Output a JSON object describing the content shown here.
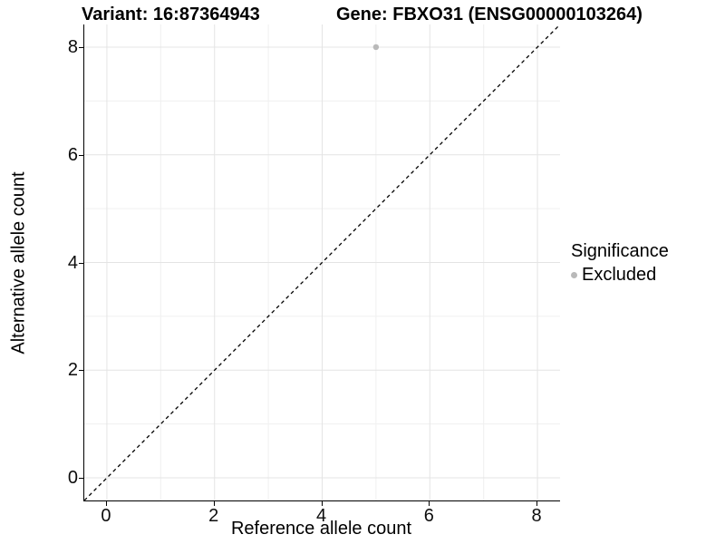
{
  "titles": {
    "variant": "Variant: 16:87364943",
    "gene": "Gene: FBXO31 (ENSG00000103264)"
  },
  "chart_data": {
    "type": "scatter",
    "title_left": "Variant: 16:87364943",
    "title_right": "Gene: FBXO31 (ENSG00000103264)",
    "xlabel": "Reference allele count",
    "ylabel": "Alternative allele count",
    "xlim": [
      -0.42,
      8.42
    ],
    "ylim": [
      -0.42,
      8.42
    ],
    "x_ticks": [
      0,
      2,
      4,
      6,
      8
    ],
    "y_ticks": [
      0,
      2,
      4,
      6,
      8
    ],
    "x_tick_labels": [
      "0",
      "2",
      "4",
      "6",
      "8"
    ],
    "y_tick_labels": [
      "0",
      "2",
      "4",
      "6",
      "8"
    ],
    "minor_ticks": [
      1,
      3,
      5,
      7
    ],
    "grid": true,
    "identity_line": {
      "type": "dashed",
      "color": "#000000",
      "from": [
        -0.42,
        -0.42
      ],
      "to": [
        8.42,
        8.42
      ]
    },
    "series": [
      {
        "name": "Excluded",
        "color": "#b9b9b9",
        "points": [
          {
            "x": 5,
            "y": 8
          }
        ]
      }
    ],
    "legend": {
      "title": "Significance",
      "position": "right",
      "entries": [
        {
          "label": "Excluded",
          "color": "#b9b9b9",
          "marker": "circle-icon"
        }
      ]
    }
  },
  "colors": {
    "grid_major": "#e4e4e4",
    "grid_minor": "#f0f0f0",
    "axis_line": "#000000",
    "point_gray": "#b9b9b9",
    "background": "#ffffff"
  }
}
